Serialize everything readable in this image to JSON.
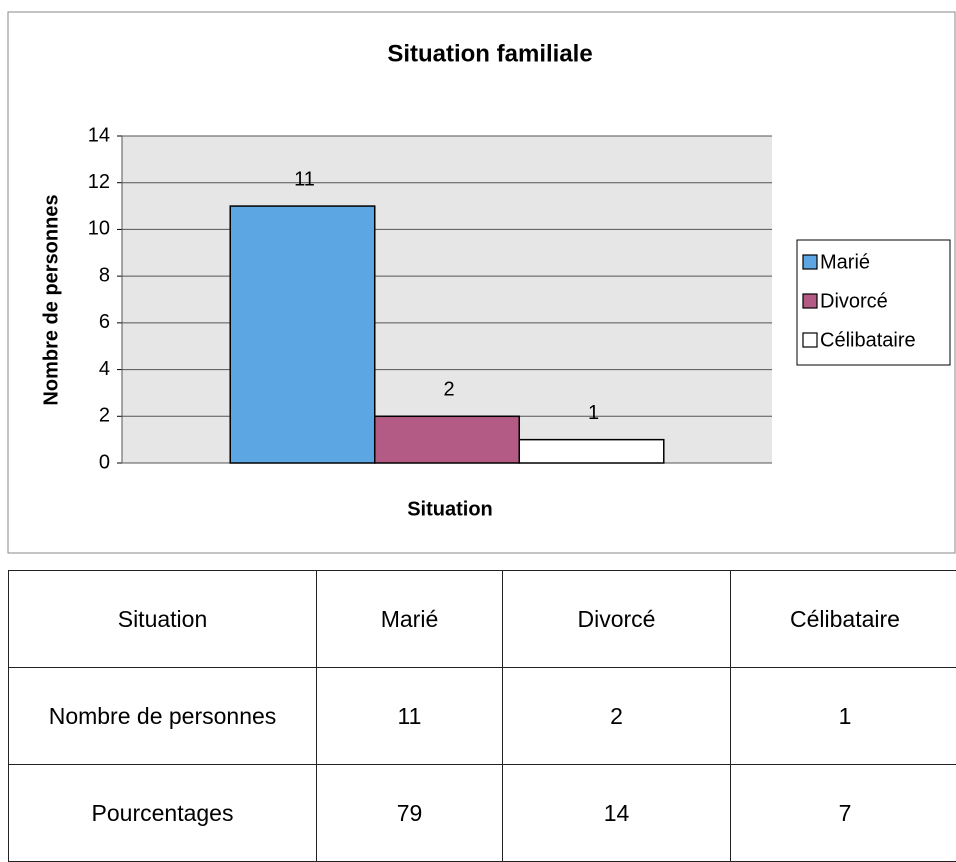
{
  "chart_data": {
    "type": "bar",
    "title": "Situation familiale",
    "x_label": "Situation",
    "y_label": "Nombre de personnes",
    "categories": [
      null
    ],
    "series": [
      {
        "name": "Marié",
        "color": "#5ba6e3",
        "values": [
          11
        ]
      },
      {
        "name": "Divorcé",
        "color": "#b35a85",
        "values": [
          2
        ]
      },
      {
        "name": "Célibataire",
        "color": "#ffffff",
        "values": [
          1
        ]
      }
    ],
    "ylim": [
      0,
      14
    ],
    "yticks": [
      0,
      2,
      4,
      6,
      8,
      10,
      12,
      14
    ],
    "grid": true,
    "legend": "right",
    "data_labels": true
  },
  "table": {
    "header": [
      "Situation",
      "Marié",
      "Divorcé",
      "Célibataire"
    ],
    "rows": [
      [
        "Nombre de personnes",
        11,
        2,
        1
      ],
      [
        "Pourcentages",
        79,
        14,
        7
      ]
    ]
  }
}
